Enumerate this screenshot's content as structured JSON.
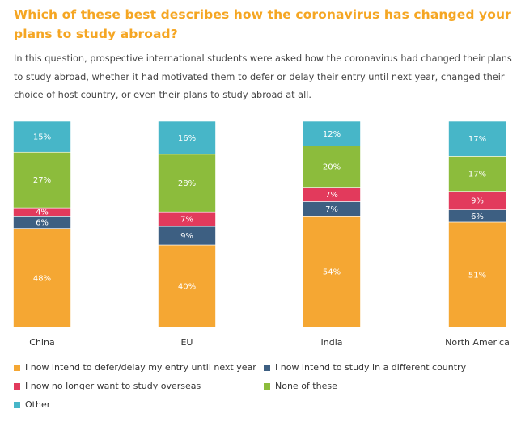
{
  "page": {
    "title": "Which of these best describes how the coronavirus has changed your plans to study abroad?",
    "description": "In this question, prospective international students were asked how the coronavirus had changed their plans to study abroad, whether it had motivated them to defer or delay their entry until next year, changed their choice of host country, or even their plans to study abroad at all."
  },
  "chart_data": {
    "type": "bar",
    "stacked": true,
    "normalized_100": true,
    "categories": [
      "China",
      "EU",
      "India",
      "North America"
    ],
    "series": [
      {
        "name": "I now intend to defer/delay my entry until next year",
        "color": "#f5a733",
        "values": [
          48,
          40,
          54,
          51
        ]
      },
      {
        "name": "I now intend to study in a different country",
        "color": "#3d5f82",
        "values": [
          6,
          9,
          7,
          6
        ]
      },
      {
        "name": "I now no longer want to study overseas",
        "color": "#e23a5c",
        "values": [
          4,
          7,
          7,
          9
        ]
      },
      {
        "name": "None of these",
        "color": "#8cbc3c",
        "values": [
          27,
          28,
          20,
          17
        ]
      },
      {
        "name": "Other",
        "color": "#47b6c8",
        "values": [
          15,
          16,
          12,
          17
        ]
      }
    ],
    "value_suffix": "%",
    "legend_position": "bottom"
  }
}
